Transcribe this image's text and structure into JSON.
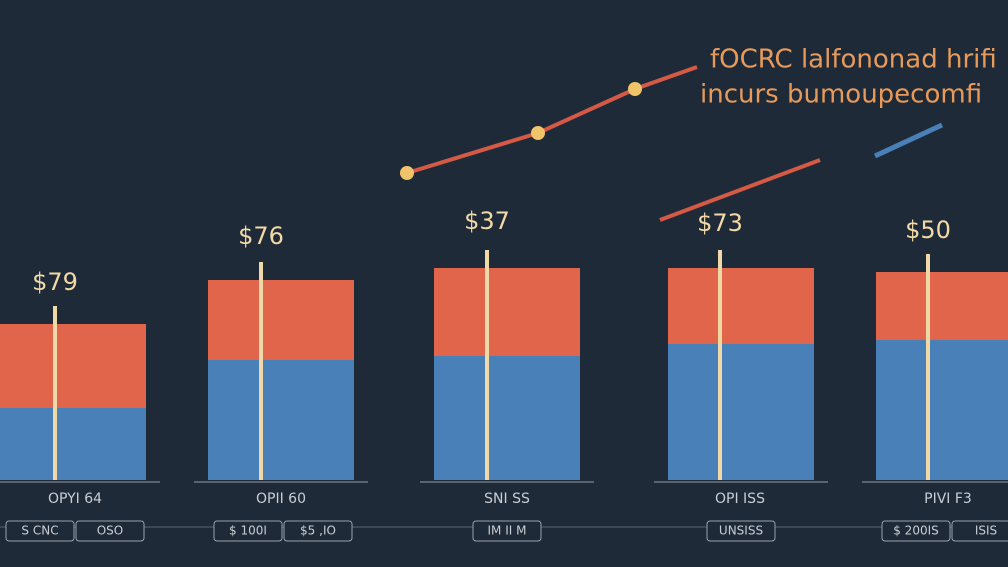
{
  "chart_data": {
    "type": "bar",
    "stacked": true,
    "title": "fOCRC lalfononad hrifi",
    "subtitle": "incurs bumoupecomfi",
    "categories": [
      "OPYI 64",
      "OPII 60",
      "SNI SS",
      "OPI ISS",
      "PIVI F3"
    ],
    "annotations": [
      "$79",
      "$76",
      "$37",
      "$73",
      "$50"
    ],
    "footer_labels": [
      [
        "S CNC",
        "OSO"
      ],
      [
        "$ 100I",
        "$5 ,IO"
      ],
      [
        "IM II M"
      ],
      [
        "UNSISS"
      ],
      [
        "$ 200IS",
        "ISIS"
      ]
    ],
    "series": [
      {
        "color": "#4a80b8",
        "values": [
          18,
          30,
          31,
          34,
          35
        ]
      },
      {
        "color": "#e0654a",
        "values": [
          21,
          20,
          22,
          19,
          17
        ]
      }
    ],
    "ylim": [
      0,
      100
    ]
  }
}
